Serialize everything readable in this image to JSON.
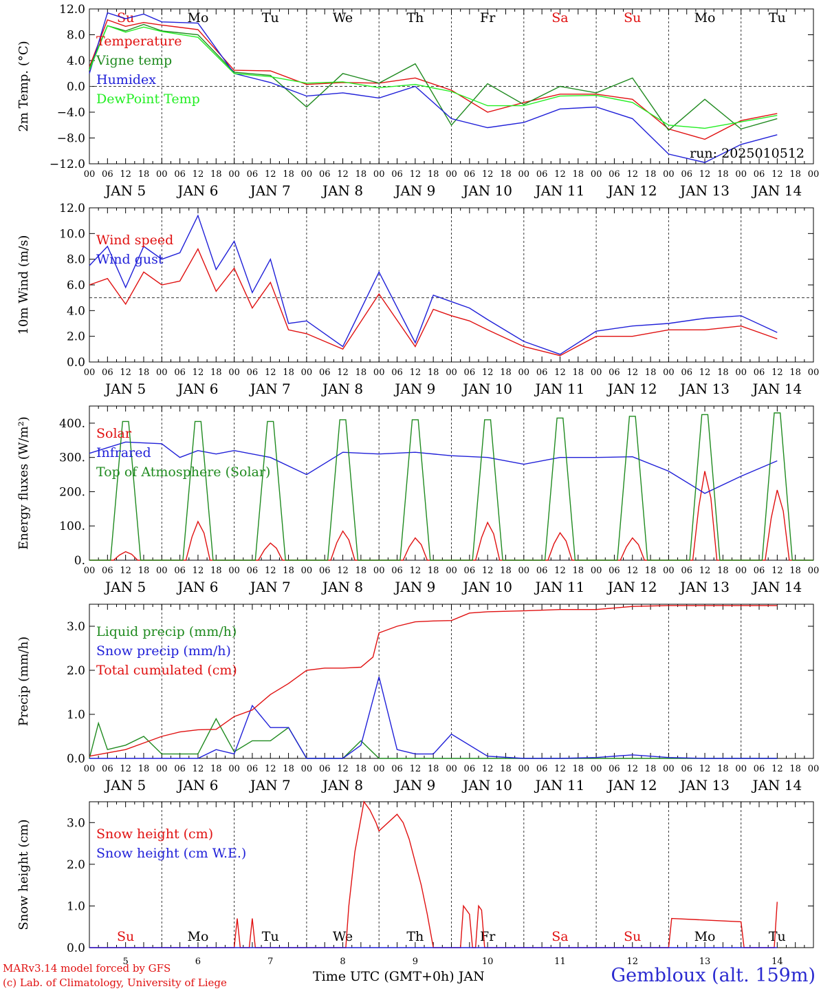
{
  "colors": {
    "red": "#e01010",
    "green": "#1f8a1f",
    "blue": "#1f1fd8",
    "light_green": "#22ee22",
    "station": "#2a2ad0"
  },
  "time_axis": {
    "hour_labels": [
      "00",
      "06",
      "12",
      "18"
    ],
    "date_labels": [
      "JAN  5",
      "JAN  6",
      "JAN  7",
      "JAN  8",
      "JAN  9",
      "JAN 10",
      "JAN 11",
      "JAN 12",
      "JAN 13",
      "JAN 14"
    ],
    "weekday_labels": [
      "Su",
      "Mo",
      "Tu",
      "We",
      "Th",
      "Fr",
      "Sa",
      "Su",
      "Mo",
      "Tu"
    ],
    "weekday_red": [
      true,
      false,
      false,
      false,
      false,
      false,
      true,
      true,
      false,
      false
    ],
    "day_numbers": [
      "5",
      "6",
      "7",
      "8",
      "9",
      "10",
      "11",
      "12",
      "13",
      "14"
    ],
    "bottom_label": "Time UTC (GMT+0h) JAN"
  },
  "footer": {
    "line1": "MARv3.14 model forced by GFS",
    "line2": "(c) Lab. of Climatology, University of Liege",
    "station": "Gembloux (alt. 159m)"
  },
  "chart_data": [
    {
      "type": "line",
      "ylabel": "2m Temp. (°C)",
      "ylim": [
        -12,
        12
      ],
      "yticks": [
        -12,
        -8,
        -4,
        0,
        4,
        8,
        12
      ],
      "ytick_labels": [
        "−12.0",
        "−8.0",
        "−4.0",
        "0.0",
        "4.0",
        "8.0",
        "12.0"
      ],
      "zero_line": 0,
      "annotation": "run: 2025010512",
      "x_hours": [
        0,
        6,
        12,
        18,
        24,
        36,
        48,
        60,
        72,
        84,
        96,
        108,
        120,
        132,
        144,
        156,
        168,
        180,
        192,
        204,
        216,
        228
      ],
      "series": [
        {
          "name": "Temperature",
          "color": "red",
          "values": [
            3,
            10.3,
            9.3,
            9.9,
            9.5,
            8.8,
            2.5,
            2.4,
            0.3,
            0.6,
            0.5,
            1.3,
            -0.6,
            -4,
            -2.5,
            -1.2,
            -1.2,
            -2,
            -6.6,
            -8.2,
            -5.3,
            -4.2
          ]
        },
        {
          "name": "Vigne temp",
          "color": "green",
          "values": [
            2.8,
            9.4,
            8.6,
            9.6,
            8.6,
            8,
            2.2,
            1.7,
            -3.2,
            2,
            0.5,
            3.5,
            -6,
            0.4,
            -2.8,
            0,
            -1,
            1.3,
            -6.8,
            -2,
            -6.6,
            -5
          ]
        },
        {
          "name": "Humidex",
          "color": "blue",
          "values": [
            2,
            11.4,
            10.5,
            11.2,
            10,
            9.8,
            2,
            0.6,
            -1.5,
            -1,
            -1.8,
            0,
            -5,
            -6.4,
            -5.6,
            -3.5,
            -3.2,
            -5,
            -10.5,
            -11.8,
            -9,
            -7.5
          ]
        },
        {
          "name": "DewPoint Temp",
          "color": "light_green",
          "values": [
            2.5,
            9.4,
            8.4,
            9.2,
            8.5,
            7.6,
            2,
            1.5,
            0.5,
            0.7,
            -0.2,
            0.3,
            -0.8,
            -3,
            -3,
            -1.5,
            -1.4,
            -2.5,
            -6,
            -6.5,
            -5.5,
            -4.5
          ]
        }
      ]
    },
    {
      "type": "line",
      "ylabel": "10m Wind (m/s)",
      "ylim": [
        0,
        12
      ],
      "yticks": [
        0,
        2,
        4,
        6,
        8,
        10,
        12
      ],
      "ytick_labels": [
        "0.0",
        "2.0",
        "4.0",
        "6.0",
        "8.0",
        "10.0",
        "12.0"
      ],
      "ref_line": 5,
      "x_hours": [
        0,
        6,
        12,
        18,
        24,
        30,
        36,
        42,
        48,
        54,
        60,
        66,
        72,
        84,
        96,
        108,
        114,
        120,
        126,
        132,
        144,
        156,
        168,
        180,
        192,
        204,
        216,
        228
      ],
      "series": [
        {
          "name": "Wind speed",
          "color": "red",
          "values": [
            6,
            6.5,
            4.5,
            7,
            6,
            6.3,
            8.8,
            5.5,
            7.3,
            4.2,
            6.2,
            2.5,
            2.2,
            1,
            5.3,
            1.2,
            4.1,
            3.6,
            3.2,
            2.5,
            1.2,
            0.5,
            2,
            2,
            2.5,
            2.5,
            2.8,
            1.8
          ]
        },
        {
          "name": "Wind gust",
          "color": "blue",
          "values": [
            7.5,
            9,
            5.8,
            9,
            8,
            8.5,
            11.4,
            7.2,
            9.4,
            5.4,
            8,
            3,
            3.2,
            1.2,
            7,
            1.5,
            5.2,
            4.7,
            4.2,
            3.3,
            1.6,
            0.6,
            2.4,
            2.8,
            3,
            3.4,
            3.6,
            2.3
          ]
        }
      ]
    },
    {
      "type": "line",
      "ylabel": "Energy fluxes (W/m²)",
      "ylim": [
        0,
        450
      ],
      "yticks": [
        0,
        100,
        200,
        300,
        400
      ],
      "ytick_labels": [
        "0.",
        "100.",
        "200.",
        "300.",
        "400."
      ],
      "days": [
        0,
        1,
        2,
        3,
        4,
        5,
        6,
        7,
        8,
        9
      ],
      "series": [
        {
          "name": "Solar",
          "color": "red",
          "daily_peak": [
            25,
            113,
            50,
            85,
            65,
            110,
            80,
            65,
            260,
            205
          ]
        },
        {
          "name": "Infrared",
          "color": "blue",
          "x_hours": [
            0,
            12,
            24,
            30,
            36,
            42,
            48,
            60,
            72,
            84,
            96,
            108,
            120,
            132,
            144,
            156,
            168,
            180,
            192,
            204,
            216,
            228
          ],
          "values": [
            312,
            345,
            340,
            300,
            320,
            310,
            320,
            300,
            250,
            315,
            310,
            315,
            305,
            300,
            280,
            300,
            300,
            302,
            260,
            195,
            245,
            290
          ]
        },
        {
          "name": "Top of Atmosphere (Solar)",
          "color": "green",
          "daily_peak": [
            405,
            405,
            405,
            410,
            410,
            410,
            415,
            420,
            425,
            430
          ]
        }
      ]
    },
    {
      "type": "line",
      "ylabel": "Precip (mm/h)",
      "ylim": [
        0,
        3.5
      ],
      "yticks": [
        0,
        1,
        2,
        3
      ],
      "ytick_labels": [
        "0.0",
        "1.0",
        "2.0",
        "3.0"
      ],
      "series": [
        {
          "name": "Liquid precip (mm/h)",
          "color": "green",
          "x_hours": [
            0,
            3,
            6,
            12,
            18,
            24,
            36,
            42,
            48,
            54,
            60,
            66,
            72,
            84,
            90,
            96,
            108,
            120,
            132,
            144,
            156,
            168,
            180,
            192,
            204,
            216,
            228
          ],
          "values": [
            0,
            0.8,
            0.2,
            0.3,
            0.5,
            0.1,
            0.1,
            0.9,
            0.15,
            0.4,
            0.4,
            0.7,
            0,
            0,
            0.4,
            0,
            0,
            0,
            0,
            0,
            0,
            0,
            0,
            0,
            0,
            0,
            0
          ]
        },
        {
          "name": "Snow precip (mm/h)",
          "color": "blue",
          "x_hours": [
            0,
            12,
            24,
            36,
            42,
            48,
            54,
            60,
            66,
            72,
            84,
            90,
            96,
            102,
            108,
            114,
            120,
            132,
            144,
            156,
            168,
            180,
            192,
            204,
            216,
            228
          ],
          "values": [
            0,
            0,
            0,
            0,
            0.2,
            0.1,
            1.2,
            0.7,
            0.7,
            0,
            0,
            0.3,
            1.85,
            0.2,
            0.1,
            0.1,
            0.55,
            0.05,
            0,
            0,
            0.02,
            0.08,
            0.02,
            0,
            0,
            0
          ]
        },
        {
          "name": "Total cumulated (cm)",
          "color": "red",
          "x_hours": [
            0,
            12,
            18,
            24,
            30,
            36,
            42,
            48,
            54,
            60,
            66,
            72,
            78,
            84,
            90,
            94,
            96,
            102,
            108,
            114,
            120,
            126,
            132,
            144,
            156,
            168,
            180,
            192,
            204,
            216,
            228
          ],
          "values": [
            0.05,
            0.2,
            0.35,
            0.5,
            0.6,
            0.65,
            0.66,
            0.95,
            1.1,
            1.45,
            1.7,
            2.0,
            2.05,
            2.05,
            2.07,
            2.3,
            2.85,
            3.0,
            3.1,
            3.12,
            3.13,
            3.3,
            3.33,
            3.35,
            3.38,
            3.38,
            3.45,
            3.47,
            3.47,
            3.47,
            3.47
          ]
        }
      ]
    },
    {
      "type": "line",
      "ylabel": "Snow height (cm)",
      "ylim": [
        0,
        3.5
      ],
      "yticks": [
        0,
        1,
        2,
        3
      ],
      "ytick_labels": [
        "0.0",
        "1.0",
        "2.0",
        "3.0"
      ],
      "series": [
        {
          "name": "Snow height (cm)",
          "color": "red",
          "x_hours": [
            0,
            48,
            49,
            50,
            51,
            52,
            53,
            54,
            55,
            56,
            57,
            85,
            86,
            88,
            90,
            91,
            93,
            95,
            96,
            102,
            104,
            106,
            110,
            112,
            114,
            116,
            117,
            123,
            124,
            126,
            127,
            128,
            129,
            130,
            131,
            132,
            192,
            193,
            216,
            217,
            227,
            228
          ],
          "values": [
            0,
            0,
            0.7,
            0,
            0,
            0,
            0,
            0.7,
            0,
            0,
            0,
            0,
            1,
            2.3,
            3.1,
            3.5,
            3.3,
            3.0,
            2.8,
            3.2,
            3.0,
            2.6,
            1.5,
            0.8,
            0,
            0,
            0,
            0,
            1,
            0.8,
            0,
            0,
            1,
            0.9,
            0,
            0,
            0,
            0.7,
            0.62,
            0,
            0,
            1.1
          ]
        },
        {
          "name": "Snow height (cm W.E.)",
          "color": "blue",
          "x_hours": [
            0,
            228
          ],
          "values": [
            0,
            0
          ]
        }
      ]
    }
  ]
}
